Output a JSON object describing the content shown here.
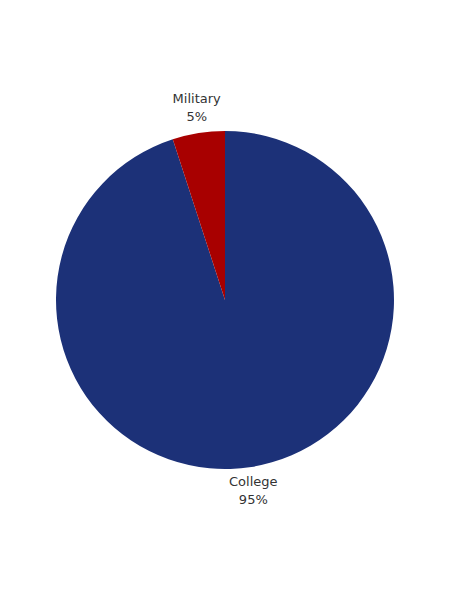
{
  "chart_data": {
    "type": "pie",
    "categories": [
      "College",
      "Military"
    ],
    "values": [
      95,
      5
    ],
    "value_labels": [
      "95%",
      "5%"
    ],
    "colors": [
      "#1c3178",
      "#a80000"
    ],
    "data_labels": true
  }
}
